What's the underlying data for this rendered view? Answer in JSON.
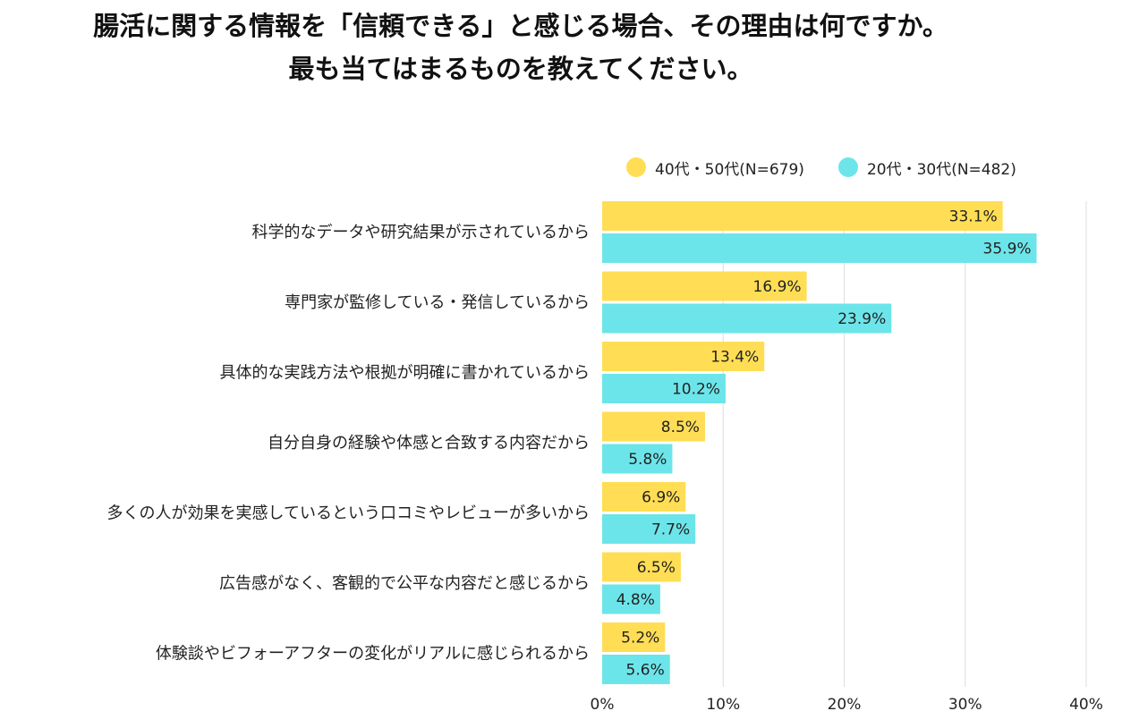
{
  "title_line1": "腸活に関する情報を「信頼できる」と感じる場合、その理由は何ですか。",
  "title_line2": "最も当てはまるものを教えてください。",
  "colors": {
    "series1": "#FFDE55",
    "series2": "#6CE5EA",
    "grid": "#DDDDDD"
  },
  "chart_data": {
    "type": "bar",
    "orientation": "horizontal",
    "title": "腸活に関する情報を「信頼できる」と感じる場合、その理由は何ですか。最も当てはまるものを教えてください。",
    "categories": [
      "科学的なデータや研究結果が示されているから",
      "専門家が監修している・発信しているから",
      "具体的な実践方法や根拠が明確に書かれているから",
      "自分自身の経験や体感と合致する内容だから",
      "多くの人が効果を実感しているという口コミやレビューが多いから",
      "広告感がなく、客観的で公平な内容だと感じるから",
      "体験談やビフォーアフターの変化がリアルに感じられるから"
    ],
    "series": [
      {
        "name": "40代・50代(N=679)",
        "values": [
          33.1,
          16.9,
          13.4,
          8.5,
          6.9,
          6.5,
          5.2
        ],
        "labels": [
          "33.1%",
          "16.9%",
          "13.4%",
          "8.5%",
          "6.9%",
          "6.5%",
          "5.2%"
        ]
      },
      {
        "name": "20代・30代(N=482)",
        "values": [
          35.9,
          23.9,
          10.2,
          5.8,
          7.7,
          4.8,
          5.6
        ],
        "labels": [
          "35.9%",
          "23.9%",
          "10.2%",
          "5.8%",
          "7.7%",
          "4.8%",
          "5.6%"
        ]
      }
    ],
    "xlim": [
      0,
      40
    ],
    "xticks": [
      0,
      10,
      20,
      30,
      40
    ],
    "xtick_labels": [
      "0%",
      "10%",
      "20%",
      "30%",
      "40%"
    ],
    "grid": true,
    "legend_position": "top-right",
    "xlabel": "",
    "ylabel": ""
  }
}
